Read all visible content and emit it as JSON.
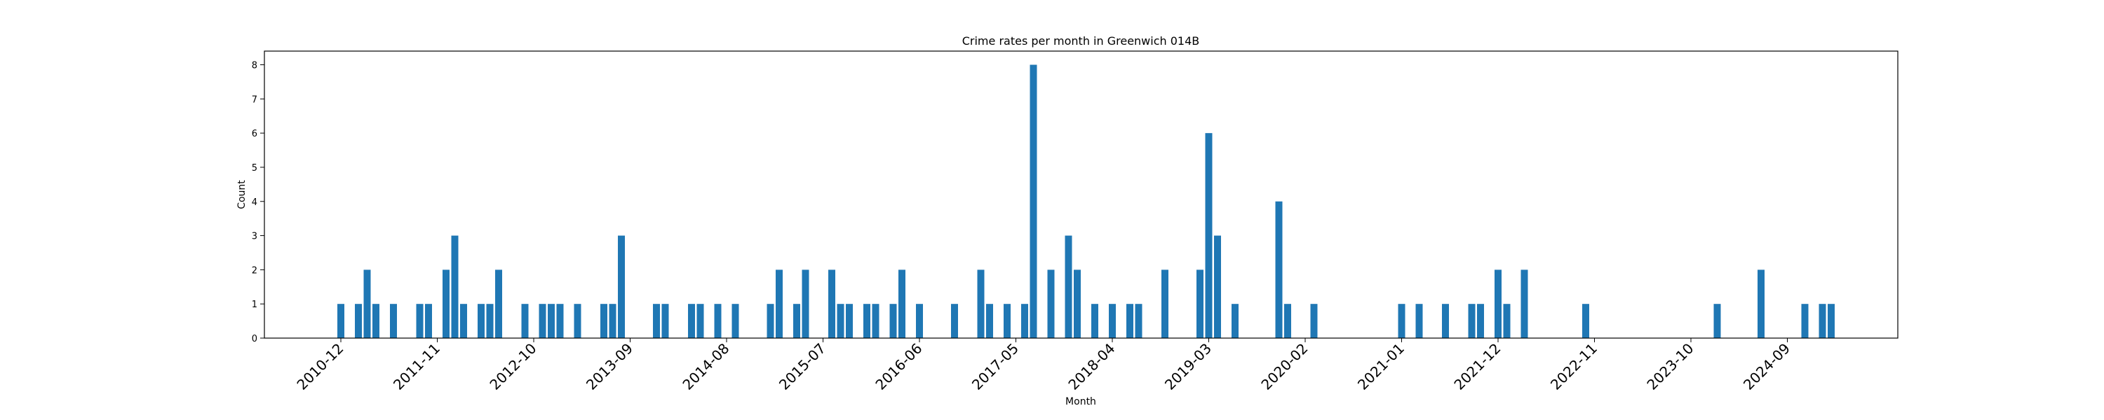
{
  "chart_data": {
    "type": "bar",
    "title": "Crime rates per month in Greenwich 014B",
    "xlabel": "Month",
    "ylabel": "Count",
    "ylim": [
      0,
      8.4
    ],
    "yticks": [
      0,
      1,
      2,
      3,
      4,
      5,
      6,
      7,
      8
    ],
    "grid": false,
    "legend": "none",
    "bar_color": "#1f77b4",
    "xticks": [
      "2010-12",
      "2011-11",
      "2012-10",
      "2013-09",
      "2014-08",
      "2015-07",
      "2016-06",
      "2017-05",
      "2018-04",
      "2019-03",
      "2020-02",
      "2021-01",
      "2021-12",
      "2022-11",
      "2023-10",
      "2024-09"
    ],
    "categories": [
      "2010-12",
      "2011-02",
      "2011-03",
      "2011-04",
      "2011-06",
      "2011-09",
      "2011-10",
      "2011-12",
      "2012-01",
      "2012-02",
      "2012-04",
      "2012-05",
      "2012-06",
      "2012-09",
      "2012-11",
      "2012-12",
      "2013-01",
      "2013-03",
      "2013-06",
      "2013-07",
      "2013-08",
      "2013-12",
      "2014-01",
      "2014-04",
      "2014-05",
      "2014-07",
      "2014-09",
      "2015-01",
      "2015-02",
      "2015-04",
      "2015-05",
      "2015-08",
      "2015-09",
      "2015-10",
      "2015-12",
      "2016-01",
      "2016-03",
      "2016-04",
      "2016-06",
      "2016-10",
      "2017-01",
      "2017-02",
      "2017-04",
      "2017-06",
      "2017-07",
      "2017-09",
      "2017-11",
      "2017-12",
      "2018-02",
      "2018-04",
      "2018-06",
      "2018-07",
      "2018-10",
      "2019-02",
      "2019-03",
      "2019-04",
      "2019-06",
      "2019-11",
      "2019-12",
      "2020-03",
      "2021-01",
      "2021-03",
      "2021-06",
      "2021-09",
      "2021-10",
      "2021-12",
      "2022-01",
      "2022-03",
      "2022-10",
      "2024-01",
      "2024-06",
      "2024-11",
      "2025-01",
      "2025-02"
    ],
    "values": [
      1,
      1,
      2,
      1,
      1,
      1,
      1,
      2,
      3,
      1,
      1,
      1,
      2,
      1,
      1,
      1,
      1,
      1,
      1,
      1,
      3,
      1,
      1,
      1,
      1,
      1,
      1,
      1,
      2,
      1,
      2,
      2,
      1,
      1,
      1,
      1,
      1,
      2,
      1,
      1,
      2,
      1,
      1,
      1,
      8,
      2,
      3,
      2,
      1,
      1,
      1,
      1,
      2,
      2,
      6,
      3,
      1,
      4,
      1,
      1,
      1,
      1,
      1,
      1,
      1,
      2,
      1,
      2,
      1,
      1,
      2,
      1,
      1,
      1
    ]
  }
}
